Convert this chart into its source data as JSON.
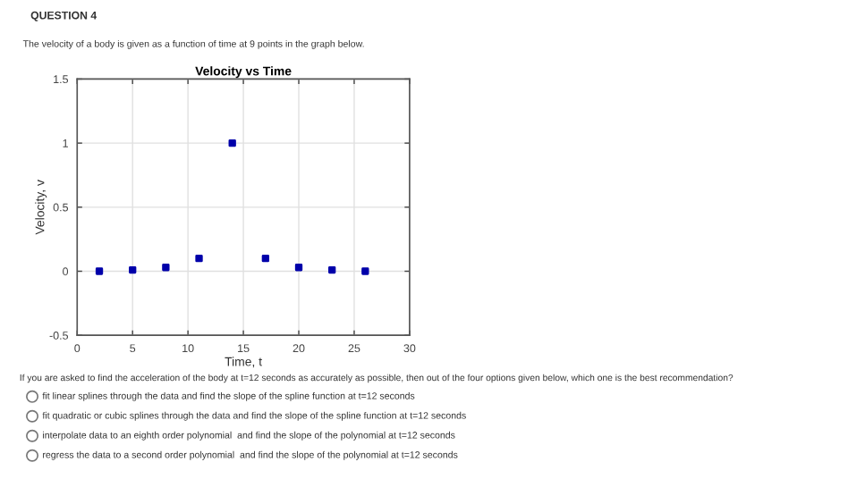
{
  "chart_data": {
    "type": "scatter",
    "title": "Velocity vs Time",
    "xlabel": "Time, t",
    "ylabel": "Velocity, v",
    "x": [
      2,
      5,
      8,
      11,
      14,
      17,
      20,
      23,
      26
    ],
    "series": [
      {
        "color": "#0000aa",
        "values": [
          0,
          0.01,
          0.03,
          0.1,
          1,
          0.1,
          0.03,
          0.01,
          0
        ]
      }
    ],
    "xlim": [
      0,
      30
    ],
    "xticks": [
      0,
      5,
      10,
      15,
      20,
      25,
      30
    ],
    "ylim": [
      -0.5,
      1.5
    ],
    "yticks": [
      -0.5,
      0,
      0.5,
      1,
      1.5
    ],
    "grid": true,
    "marker": "square",
    "annotations": [
      "QUESTION 4",
      "The velocity of a body is given as a function of time at 9 points in the graph below.",
      "If you are asked to find the acceleration of the body at t=12 seconds as accurately as possible, then out of the four options given below, which one is the best recommendation?",
      "fit linear splines through the data and find the slope of the spline function at t=12 seconds",
      "fit quadratic or cubic splines through the data and find the slope of the spline function at t=12 seconds",
      "interpolate data to an eighth order polynomial  and find the slope of the polynomial at t=12 seconds",
      "regress the data to a second order polynomial  and find the slope of the polynomial at t=12 seconds"
    ]
  }
}
